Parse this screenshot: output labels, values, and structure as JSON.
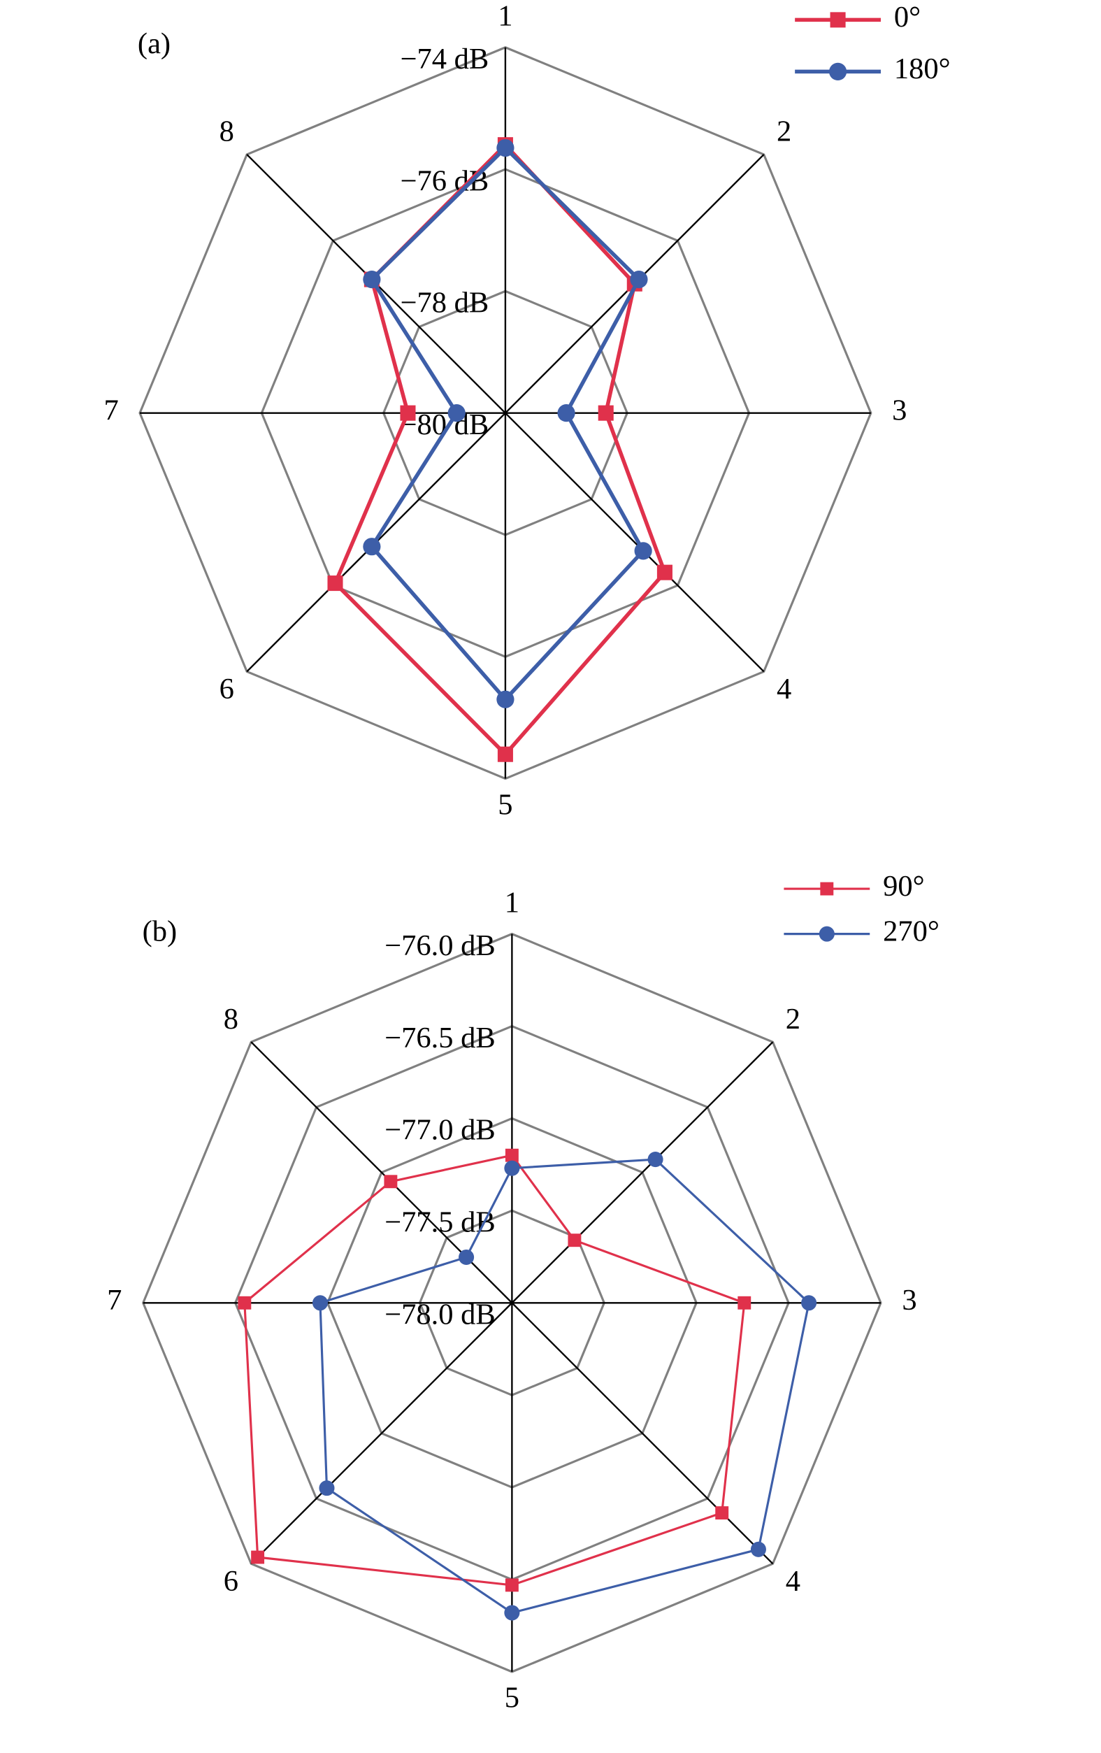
{
  "chart_data": [
    {
      "type": "radar",
      "title": "(a)",
      "categories": [
        "1",
        "2",
        "3",
        "4",
        "5",
        "6",
        "7",
        "8"
      ],
      "ylim": [
        -80,
        -74
      ],
      "yticks": [
        {
          "value": -80,
          "label": "−80 dB"
        },
        {
          "value": -78,
          "label": "−78 dB"
        },
        {
          "value": -76,
          "label": "−76 dB"
        },
        {
          "value": -74,
          "label": "−74 dB"
        }
      ],
      "series": [
        {
          "name": "0°",
          "color": "#e0314b",
          "marker": "square",
          "values": [
            -75.6,
            -77.0,
            -78.35,
            -76.3,
            -74.4,
            -76.05,
            -78.4,
            -76.9
          ]
        },
        {
          "name": "180°",
          "color": "#3d5ea8",
          "marker": "circle",
          "values": [
            -75.65,
            -76.9,
            -79.0,
            -76.8,
            -75.3,
            -76.9,
            -79.2,
            -76.9
          ]
        }
      ]
    },
    {
      "type": "radar",
      "title": "(b)",
      "categories": [
        "1",
        "2",
        "3",
        "4",
        "5",
        "6",
        "7",
        "8"
      ],
      "ylim": [
        -78,
        -76
      ],
      "yticks": [
        {
          "value": -78,
          "label": "−78.0 dB"
        },
        {
          "value": -77.5,
          "label": "−77.5 dB"
        },
        {
          "value": -77,
          "label": "−77.0 dB"
        },
        {
          "value": -76.5,
          "label": "−76.5 dB"
        },
        {
          "value": -76,
          "label": "−76.0 dB"
        }
      ],
      "series": [
        {
          "name": "90°",
          "color": "#e0314b",
          "marker": "square",
          "values": [
            -77.2,
            -77.52,
            -76.74,
            -76.39,
            -76.47,
            -76.05,
            -76.55,
            -77.07
          ]
        },
        {
          "name": "270°",
          "color": "#3d5ea8",
          "marker": "circle",
          "values": [
            -77.27,
            -76.9,
            -76.39,
            -76.11,
            -76.32,
            -76.58,
            -76.96,
            -77.65
          ]
        }
      ]
    }
  ]
}
